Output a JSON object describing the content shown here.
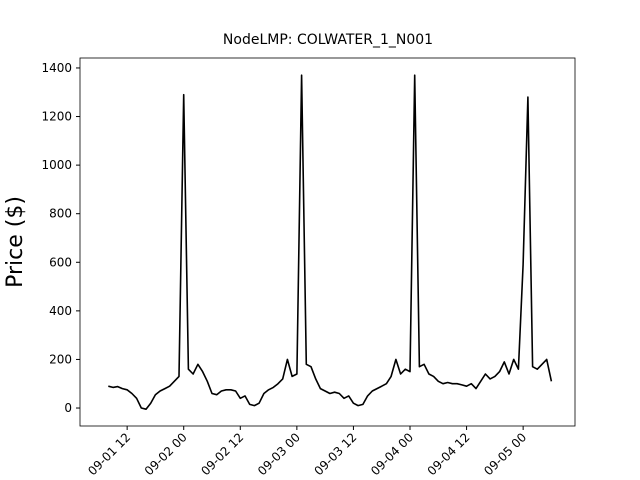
{
  "chart_data": {
    "type": "line",
    "title": "NodeLMP: COLWATER_1_N001",
    "y_label": "Price ($)",
    "x": [
      "09-01 08",
      "09-01 09",
      "09-01 10",
      "09-01 11",
      "09-01 12",
      "09-01 13",
      "09-01 14",
      "09-01 15",
      "09-01 16",
      "09-01 17",
      "09-01 18",
      "09-01 19",
      "09-01 20",
      "09-01 21",
      "09-01 22",
      "09-01 23",
      "09-02 00",
      "09-02 01",
      "09-02 02",
      "09-02 03",
      "09-02 04",
      "09-02 05",
      "09-02 06",
      "09-02 07",
      "09-02 08",
      "09-02 09",
      "09-02 10",
      "09-02 11",
      "09-02 12",
      "09-02 13",
      "09-02 14",
      "09-02 15",
      "09-02 16",
      "09-02 17",
      "09-02 18",
      "09-02 19",
      "09-02 20",
      "09-02 21",
      "09-02 22",
      "09-02 23",
      "09-03 00",
      "09-03 01",
      "09-03 02",
      "09-03 03",
      "09-03 04",
      "09-03 05",
      "09-03 06",
      "09-03 07",
      "09-03 08",
      "09-03 09",
      "09-03 10",
      "09-03 11",
      "09-03 12",
      "09-03 13",
      "09-03 14",
      "09-03 15",
      "09-03 16",
      "09-03 17",
      "09-03 18",
      "09-03 19",
      "09-03 20",
      "09-03 21",
      "09-03 22",
      "09-03 23",
      "09-04 00",
      "09-04 01",
      "09-04 02",
      "09-04 03",
      "09-04 04",
      "09-04 05",
      "09-04 06",
      "09-04 07",
      "09-04 08",
      "09-04 09",
      "09-04 10",
      "09-04 11",
      "09-04 12",
      "09-04 13",
      "09-04 14",
      "09-04 15",
      "09-04 16",
      "09-04 17",
      "09-04 18",
      "09-04 19",
      "09-04 20",
      "09-04 21",
      "09-04 22",
      "09-04 23",
      "09-05 00",
      "09-05 01",
      "09-05 02",
      "09-05 03",
      "09-05 04",
      "09-05 05",
      "09-05 06"
    ],
    "values": [
      90,
      85,
      88,
      80,
      75,
      60,
      40,
      0,
      -5,
      20,
      55,
      70,
      80,
      90,
      110,
      130,
      1290,
      160,
      140,
      180,
      150,
      110,
      60,
      55,
      70,
      75,
      75,
      70,
      40,
      50,
      15,
      10,
      20,
      60,
      75,
      85,
      100,
      120,
      200,
      130,
      140,
      1370,
      180,
      170,
      120,
      80,
      70,
      60,
      65,
      60,
      40,
      50,
      20,
      10,
      15,
      50,
      70,
      80,
      90,
      100,
      130,
      200,
      140,
      160,
      150,
      1370,
      170,
      180,
      140,
      130,
      110,
      100,
      105,
      100,
      100,
      95,
      90,
      100,
      80,
      110,
      140,
      120,
      130,
      150,
      190,
      140,
      200,
      160,
      590,
      1280,
      170,
      160,
      180,
      200,
      110
    ],
    "color": "#000000",
    "xlim": [
      "09-01 02",
      "09-05 11"
    ],
    "xticks": [
      "09-01 12",
      "09-02 00",
      "09-02 12",
      "09-03 00",
      "09-03 12",
      "09-04 00",
      "09-04 12",
      "09-05 00"
    ],
    "ylim": [
      -74,
      1441
    ],
    "yticks": [
      0,
      200,
      400,
      600,
      800,
      1000,
      1200,
      1400
    ]
  }
}
